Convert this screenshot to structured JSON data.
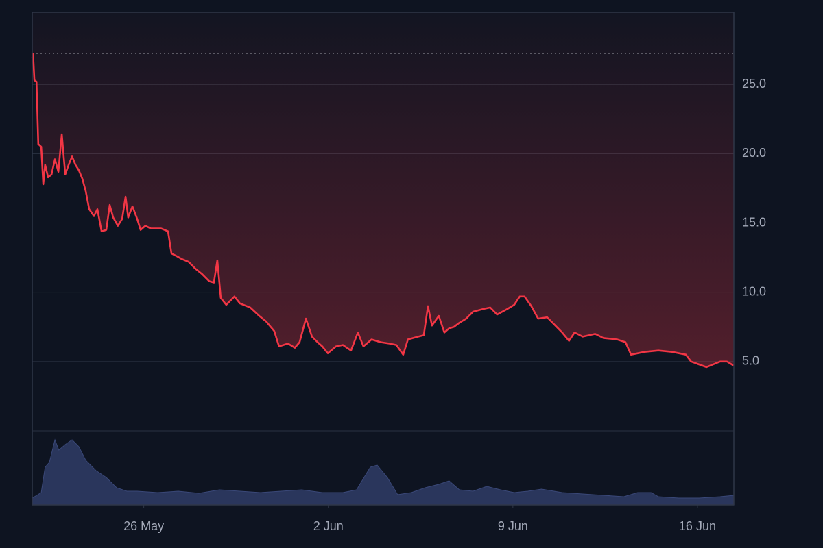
{
  "chart_data": [
    {
      "type": "line",
      "color": "#f23645",
      "grid": true,
      "max_line": 27.25,
      "xlim": [
        21.77,
        48.38
      ],
      "xticks": [
        {
          "value": 26,
          "label": "26 May"
        },
        {
          "value": 33,
          "label": "2 Jun"
        },
        {
          "value": 40,
          "label": "9 Jun"
        },
        {
          "value": 47,
          "label": "16 Jun"
        }
      ],
      "ylim": [
        0,
        30.2
      ],
      "yticks": [
        {
          "value": 5,
          "label": "5.0"
        },
        {
          "value": 10,
          "label": "10.0"
        },
        {
          "value": 15,
          "label": "15.0"
        },
        {
          "value": 20,
          "label": "20.0"
        },
        {
          "value": 25,
          "label": "25.0"
        }
      ],
      "x": [
        21.77,
        21.8,
        21.85,
        21.93,
        22.0,
        22.11,
        22.19,
        22.26,
        22.37,
        22.5,
        22.63,
        22.76,
        22.89,
        23.02,
        23.15,
        23.28,
        23.41,
        23.54,
        23.67,
        23.8,
        23.93,
        24.11,
        24.24,
        24.4,
        24.58,
        24.71,
        24.84,
        25.02,
        25.18,
        25.31,
        25.41,
        25.57,
        25.75,
        25.88,
        26.06,
        26.27,
        26.66,
        26.92,
        27.05,
        27.26,
        27.44,
        27.7,
        27.96,
        28.22,
        28.48,
        28.66,
        28.79,
        28.92,
        29.13,
        29.44,
        29.65,
        30.04,
        30.38,
        30.64,
        30.95,
        31.13,
        31.47,
        31.73,
        31.91,
        32.15,
        32.38,
        32.59,
        32.77,
        32.98,
        33.29,
        33.55,
        33.86,
        34.12,
        34.33,
        34.64,
        34.98,
        35.32,
        35.58,
        35.84,
        36.02,
        36.41,
        36.62,
        36.78,
        36.93,
        37.19,
        37.4,
        37.58,
        37.76,
        37.97,
        38.23,
        38.49,
        38.88,
        39.14,
        39.4,
        39.79,
        40.05,
        40.26,
        40.44,
        40.7,
        40.96,
        41.3,
        41.61,
        41.87,
        42.13,
        42.34,
        42.65,
        43.12,
        43.43,
        43.95,
        44.27,
        44.48,
        44.99,
        45.52,
        46.04,
        46.56,
        46.76,
        47.34,
        47.86,
        48.12,
        48.38
      ],
      "values": [
        26.9,
        27.2,
        25.3,
        25.2,
        20.7,
        20.5,
        17.8,
        19.2,
        18.3,
        18.5,
        19.6,
        18.7,
        21.4,
        18.5,
        19.2,
        19.8,
        19.2,
        18.8,
        18.2,
        17.3,
        16.0,
        15.5,
        16.0,
        14.4,
        14.5,
        16.3,
        15.4,
        14.8,
        15.3,
        16.9,
        15.4,
        16.2,
        15.3,
        14.5,
        14.8,
        14.6,
        14.6,
        14.4,
        12.8,
        12.6,
        12.4,
        12.2,
        11.7,
        11.3,
        10.8,
        10.7,
        12.3,
        9.6,
        9.1,
        9.7,
        9.2,
        8.9,
        8.3,
        7.9,
        7.2,
        6.1,
        6.3,
        6.0,
        6.4,
        8.1,
        6.8,
        6.4,
        6.1,
        5.6,
        6.1,
        6.2,
        5.8,
        7.1,
        6.1,
        6.6,
        6.4,
        6.3,
        6.2,
        5.5,
        6.6,
        6.8,
        6.9,
        9.0,
        7.6,
        8.3,
        7.1,
        7.4,
        7.5,
        7.8,
        8.1,
        8.6,
        8.8,
        8.9,
        8.4,
        8.8,
        9.1,
        9.7,
        9.7,
        9.0,
        8.1,
        8.2,
        7.6,
        7.1,
        6.5,
        7.1,
        6.8,
        7.0,
        6.7,
        6.6,
        6.4,
        5.5,
        5.7,
        5.8,
        5.7,
        5.5,
        5.0,
        4.6,
        5.0,
        5.0,
        4.7
      ]
    },
    {
      "type": "area",
      "color": "#2e3a63",
      "xlim": [
        21.77,
        48.38
      ],
      "ylim": [
        0,
        108
      ],
      "x": [
        21.77,
        22.11,
        22.26,
        22.42,
        22.63,
        22.78,
        23.02,
        23.28,
        23.54,
        23.8,
        24.19,
        24.58,
        24.97,
        25.36,
        25.75,
        26.53,
        27.31,
        28.09,
        28.87,
        29.65,
        30.43,
        31.21,
        31.99,
        32.77,
        33.55,
        34.07,
        34.59,
        34.85,
        35.24,
        35.63,
        36.15,
        36.67,
        37.19,
        37.58,
        37.97,
        38.49,
        39.01,
        39.53,
        40.05,
        40.57,
        41.09,
        41.87,
        42.65,
        43.43,
        44.21,
        44.73,
        45.24,
        45.52,
        46.29,
        47.07,
        47.86,
        48.38
      ],
      "values": [
        10,
        18,
        55,
        62,
        95,
        80,
        88,
        95,
        85,
        65,
        50,
        40,
        25,
        20,
        20,
        18,
        20,
        17,
        22,
        20,
        18,
        20,
        22,
        18,
        18,
        22,
        55,
        58,
        40,
        15,
        18,
        25,
        30,
        35,
        22,
        20,
        27,
        22,
        18,
        20,
        23,
        18,
        16,
        14,
        12,
        18,
        18,
        12,
        10,
        10,
        12,
        14
      ]
    }
  ]
}
